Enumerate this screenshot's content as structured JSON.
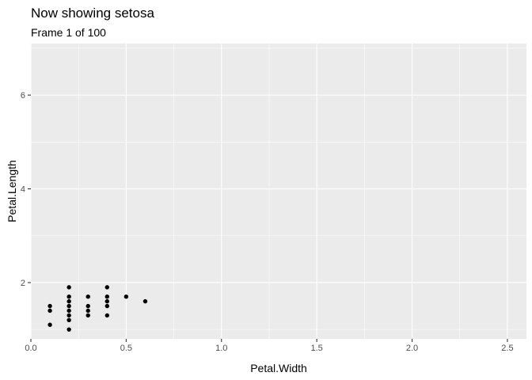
{
  "chart_data": {
    "type": "scatter",
    "title": "Now showing setosa",
    "subtitle": "Frame 1 of 100",
    "xlabel": "Petal.Width",
    "ylabel": "Petal.Length",
    "xlim": [
      0.0,
      2.6
    ],
    "ylim": [
      0.8,
      7.1
    ],
    "x_ticks": [
      0.0,
      0.5,
      1.0,
      1.5,
      2.0,
      2.5
    ],
    "x_tick_labels": [
      "0.0",
      "0.5",
      "1.0",
      "1.5",
      "2.0",
      "2.5"
    ],
    "y_ticks": [
      2,
      4,
      6
    ],
    "y_tick_labels": [
      "2",
      "4",
      "6"
    ],
    "grid": true,
    "legend": "none",
    "colors": {
      "panel": "#ebebeb",
      "grid": "#ffffff",
      "point": "#000000"
    },
    "points": [
      {
        "x": 0.1,
        "y": 1.1
      },
      {
        "x": 0.1,
        "y": 1.4
      },
      {
        "x": 0.1,
        "y": 1.5
      },
      {
        "x": 0.2,
        "y": 1.0
      },
      {
        "x": 0.2,
        "y": 1.2
      },
      {
        "x": 0.2,
        "y": 1.3
      },
      {
        "x": 0.2,
        "y": 1.4
      },
      {
        "x": 0.2,
        "y": 1.5
      },
      {
        "x": 0.2,
        "y": 1.6
      },
      {
        "x": 0.2,
        "y": 1.7
      },
      {
        "x": 0.2,
        "y": 1.9
      },
      {
        "x": 0.3,
        "y": 1.3
      },
      {
        "x": 0.3,
        "y": 1.4
      },
      {
        "x": 0.3,
        "y": 1.5
      },
      {
        "x": 0.3,
        "y": 1.7
      },
      {
        "x": 0.4,
        "y": 1.3
      },
      {
        "x": 0.4,
        "y": 1.5
      },
      {
        "x": 0.4,
        "y": 1.6
      },
      {
        "x": 0.4,
        "y": 1.7
      },
      {
        "x": 0.4,
        "y": 1.9
      },
      {
        "x": 0.5,
        "y": 1.7
      },
      {
        "x": 0.6,
        "y": 1.6
      }
    ]
  }
}
